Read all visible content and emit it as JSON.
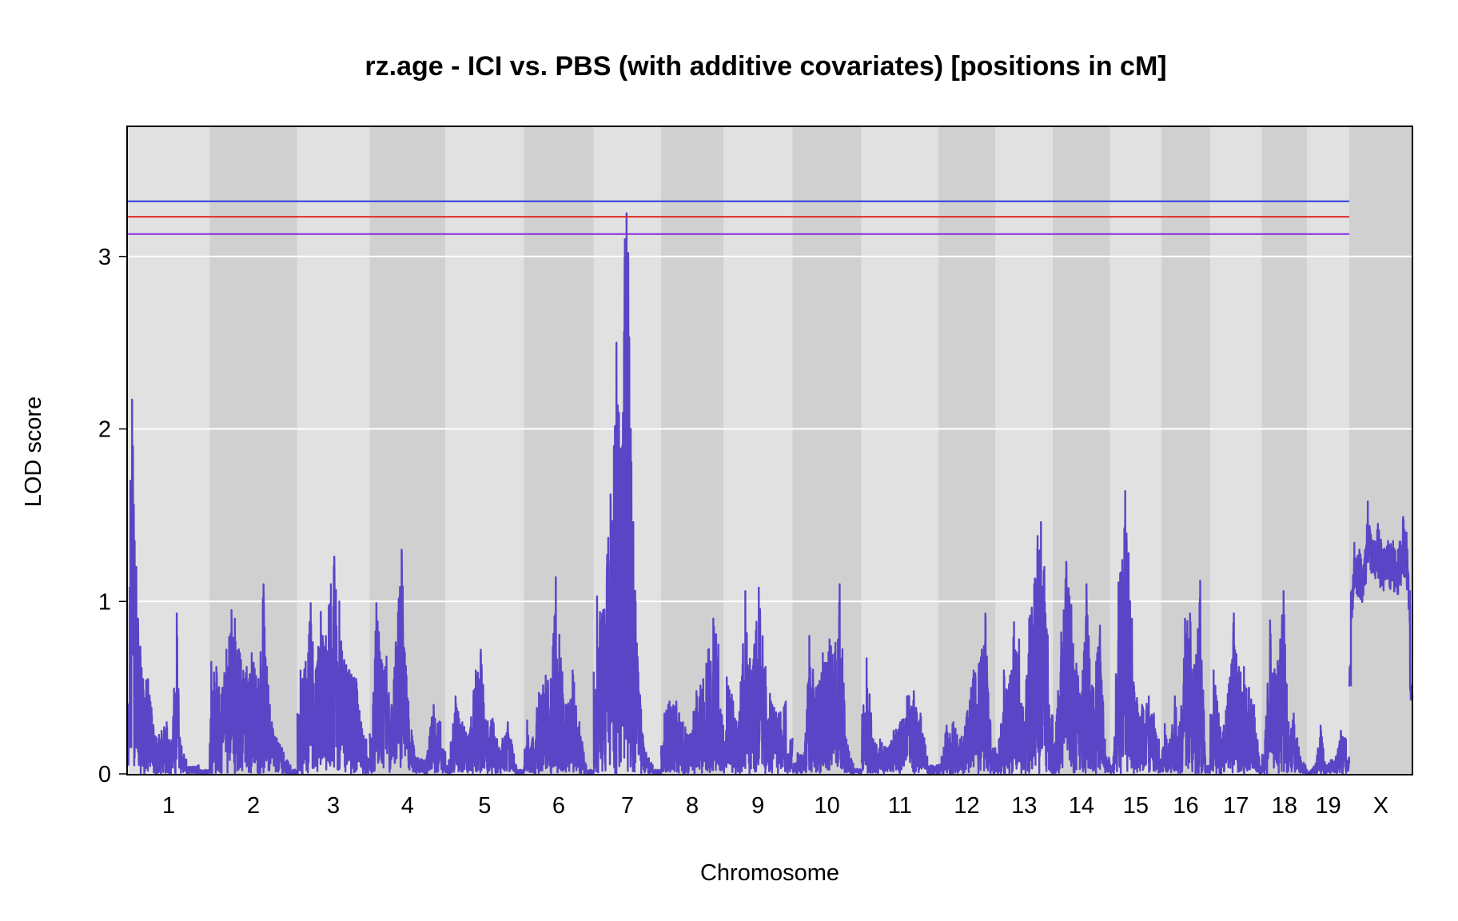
{
  "chart_data": {
    "type": "line",
    "title": "rz.age - ICI vs. PBS (with additive covariates) [positions in cM]",
    "xlabel": "Chromosome",
    "ylabel": "LOD score",
    "ylim": [
      0,
      3.75
    ],
    "y_ticks": [
      "0",
      "1",
      "2",
      "3"
    ],
    "grid": true,
    "colors": {
      "series": "#5a45c6",
      "band_light": "#e1e1e1",
      "band_dark": "#d0d0d0",
      "threshold_high": "#2a3be0",
      "threshold_mid": "#e02a2a",
      "threshold_low": "#8a2ae0"
    },
    "thresholds": [
      {
        "value": 3.32,
        "color": "#2a3be0"
      },
      {
        "value": 3.23,
        "color": "#e02a2a"
      },
      {
        "value": 3.13,
        "color": "#8a2ae0"
      }
    ],
    "chromosomes": [
      {
        "name": "1",
        "length": 97,
        "peaks": [
          [
            1,
            0.4
          ],
          [
            3,
            1.7
          ],
          [
            5,
            2.17
          ],
          [
            6,
            1.9
          ],
          [
            8,
            1.35
          ],
          [
            10,
            1.2
          ],
          [
            12,
            0.9
          ],
          [
            18,
            0.55
          ],
          [
            24,
            0.55
          ],
          [
            32,
            0.22
          ],
          [
            40,
            0.25
          ],
          [
            46,
            0.3
          ],
          [
            52,
            0.15
          ],
          [
            58,
            0.93
          ],
          [
            62,
            0.2
          ],
          [
            72,
            0.04
          ],
          [
            84,
            0.05
          ]
        ]
      },
      {
        "name": "2",
        "length": 104,
        "peaks": [
          [
            2,
            0.65
          ],
          [
            8,
            0.62
          ],
          [
            14,
            0.46
          ],
          [
            20,
            0.72
          ],
          [
            26,
            0.95
          ],
          [
            30,
            0.9
          ],
          [
            36,
            0.7
          ],
          [
            44,
            0.62
          ],
          [
            50,
            0.7
          ],
          [
            58,
            0.55
          ],
          [
            64,
            1.1
          ],
          [
            68,
            0.62
          ],
          [
            74,
            0.3
          ],
          [
            86,
            0.15
          ],
          [
            96,
            0.05
          ]
        ]
      },
      {
        "name": "3",
        "length": 86,
        "peaks": [
          [
            4,
            0.6
          ],
          [
            10,
            0.65
          ],
          [
            16,
            0.99
          ],
          [
            22,
            0.6
          ],
          [
            28,
            0.94
          ],
          [
            34,
            0.8
          ],
          [
            40,
            1.1
          ],
          [
            44,
            1.26
          ],
          [
            50,
            1.0
          ],
          [
            56,
            0.65
          ],
          [
            62,
            0.6
          ],
          [
            70,
            0.55
          ],
          [
            76,
            0.3
          ],
          [
            82,
            0.2
          ]
        ]
      },
      {
        "name": "4",
        "length": 90,
        "peaks": [
          [
            4,
            0.4
          ],
          [
            8,
            0.99
          ],
          [
            14,
            0.66
          ],
          [
            20,
            0.68
          ],
          [
            26,
            0.4
          ],
          [
            38,
            1.3
          ],
          [
            46,
            0.42
          ],
          [
            54,
            0.1
          ],
          [
            66,
            0.08
          ],
          [
            76,
            0.4
          ],
          [
            84,
            0.3
          ]
        ]
      },
      {
        "name": "5",
        "length": 93,
        "peaks": [
          [
            4,
            0.08
          ],
          [
            12,
            0.45
          ],
          [
            20,
            0.3
          ],
          [
            28,
            0.23
          ],
          [
            36,
            0.6
          ],
          [
            42,
            0.72
          ],
          [
            48,
            0.3
          ],
          [
            56,
            0.32
          ],
          [
            64,
            0.15
          ],
          [
            74,
            0.3
          ],
          [
            84,
            0.05
          ]
        ]
      },
      {
        "name": "6",
        "length": 83,
        "peaks": [
          [
            4,
            0.31
          ],
          [
            10,
            0.2
          ],
          [
            18,
            0.47
          ],
          [
            26,
            0.57
          ],
          [
            32,
            0.55
          ],
          [
            38,
            1.14
          ],
          [
            44,
            0.67
          ],
          [
            50,
            0.4
          ],
          [
            58,
            0.6
          ],
          [
            66,
            0.3
          ],
          [
            74,
            0.05
          ]
        ]
      },
      {
        "name": "7",
        "length": 80,
        "peaks": [
          [
            4,
            1.03
          ],
          [
            10,
            0.93
          ],
          [
            16,
            1.27
          ],
          [
            20,
            1.62
          ],
          [
            24,
            1.9
          ],
          [
            27,
            2.5
          ],
          [
            30,
            2.09
          ],
          [
            34,
            1.9
          ],
          [
            37,
            3.1
          ],
          [
            39,
            3.25
          ],
          [
            41,
            3.02
          ],
          [
            44,
            2.0
          ],
          [
            47,
            1.46
          ],
          [
            52,
            0.68
          ],
          [
            60,
            0.15
          ],
          [
            70,
            0.05
          ]
        ]
      },
      {
        "name": "8",
        "length": 74,
        "peaks": [
          [
            4,
            0.35
          ],
          [
            10,
            0.42
          ],
          [
            18,
            0.42
          ],
          [
            26,
            0.3
          ],
          [
            34,
            0.22
          ],
          [
            42,
            0.48
          ],
          [
            50,
            0.55
          ],
          [
            56,
            0.72
          ],
          [
            62,
            0.9
          ],
          [
            68,
            0.75
          ]
        ]
      },
      {
        "name": "9",
        "length": 82,
        "peaks": [
          [
            4,
            0.56
          ],
          [
            10,
            0.46
          ],
          [
            18,
            0.3
          ],
          [
            26,
            1.06
          ],
          [
            34,
            0.6
          ],
          [
            42,
            1.08
          ],
          [
            50,
            0.62
          ],
          [
            58,
            0.4
          ],
          [
            66,
            0.35
          ],
          [
            74,
            0.42
          ]
        ]
      },
      {
        "name": "10",
        "length": 82,
        "peaks": [
          [
            6,
            0.12
          ],
          [
            14,
            0.12
          ],
          [
            20,
            0.8
          ],
          [
            28,
            0.5
          ],
          [
            36,
            0.7
          ],
          [
            44,
            0.78
          ],
          [
            50,
            0.7
          ],
          [
            56,
            1.1
          ],
          [
            64,
            0.2
          ],
          [
            72,
            0.06
          ]
        ]
      },
      {
        "name": "11",
        "length": 91,
        "peaks": [
          [
            6,
            0.67
          ],
          [
            14,
            0.2
          ],
          [
            22,
            0.2
          ],
          [
            30,
            0.15
          ],
          [
            38,
            0.25
          ],
          [
            46,
            0.3
          ],
          [
            54,
            0.45
          ],
          [
            62,
            0.48
          ],
          [
            70,
            0.35
          ],
          [
            78,
            0.1
          ]
        ]
      },
      {
        "name": "12",
        "length": 68,
        "peaks": [
          [
            4,
            0.1
          ],
          [
            10,
            0.28
          ],
          [
            18,
            0.3
          ],
          [
            26,
            0.2
          ],
          [
            34,
            0.35
          ],
          [
            42,
            0.6
          ],
          [
            50,
            0.65
          ],
          [
            56,
            0.93
          ],
          [
            62,
            0.3
          ]
        ]
      },
      {
        "name": "13",
        "length": 68,
        "peaks": [
          [
            4,
            0.2
          ],
          [
            10,
            0.6
          ],
          [
            16,
            0.52
          ],
          [
            22,
            0.88
          ],
          [
            28,
            0.78
          ],
          [
            34,
            0.3
          ],
          [
            40,
            0.9
          ],
          [
            46,
            1.1
          ],
          [
            50,
            1.38
          ],
          [
            54,
            1.46
          ],
          [
            58,
            1.2
          ],
          [
            62,
            0.8
          ]
        ]
      },
      {
        "name": "14",
        "length": 68,
        "peaks": [
          [
            4,
            0.3
          ],
          [
            10,
            0.82
          ],
          [
            16,
            1.23
          ],
          [
            22,
            0.98
          ],
          [
            28,
            0.64
          ],
          [
            34,
            0.45
          ],
          [
            40,
            1.1
          ],
          [
            48,
            0.5
          ],
          [
            56,
            0.86
          ],
          [
            62,
            0.2
          ]
        ]
      },
      {
        "name": "15",
        "length": 61,
        "peaks": [
          [
            4,
            0.1
          ],
          [
            10,
            1.11
          ],
          [
            18,
            1.64
          ],
          [
            22,
            1.28
          ],
          [
            26,
            0.9
          ],
          [
            32,
            0.44
          ],
          [
            38,
            0.4
          ],
          [
            46,
            0.45
          ],
          [
            52,
            0.35
          ],
          [
            58,
            0.2
          ]
        ]
      },
      {
        "name": "16",
        "length": 58,
        "peaks": [
          [
            4,
            0.29
          ],
          [
            10,
            0.2
          ],
          [
            16,
            0.45
          ],
          [
            22,
            0.3
          ],
          [
            28,
            0.9
          ],
          [
            34,
            0.93
          ],
          [
            40,
            0.6
          ],
          [
            46,
            1.12
          ],
          [
            52,
            0.1
          ]
        ]
      },
      {
        "name": "17",
        "length": 61,
        "peaks": [
          [
            4,
            0.6
          ],
          [
            10,
            0.35
          ],
          [
            16,
            0.28
          ],
          [
            22,
            0.52
          ],
          [
            28,
            0.93
          ],
          [
            34,
            0.62
          ],
          [
            40,
            0.62
          ],
          [
            46,
            0.5
          ],
          [
            52,
            0.4
          ],
          [
            58,
            0.1
          ]
        ]
      },
      {
        "name": "18",
        "length": 54,
        "peaks": [
          [
            4,
            0.2
          ],
          [
            10,
            0.89
          ],
          [
            16,
            0.58
          ],
          [
            22,
            0.78
          ],
          [
            26,
            1.06
          ],
          [
            32,
            0.3
          ],
          [
            38,
            0.35
          ],
          [
            46,
            0.1
          ],
          [
            52,
            0.05
          ]
        ]
      },
      {
        "name": "19",
        "length": 50,
        "peaks": [
          [
            4,
            0.02
          ],
          [
            10,
            0.06
          ],
          [
            16,
            0.28
          ],
          [
            22,
            0.05
          ],
          [
            28,
            0.08
          ],
          [
            34,
            0.1
          ],
          [
            40,
            0.25
          ],
          [
            46,
            0.2
          ]
        ]
      },
      {
        "name": "X",
        "length": 75,
        "peaks": [
          [
            2,
            1.05
          ],
          [
            6,
            1.34
          ],
          [
            12,
            1.3
          ],
          [
            18,
            1.25
          ],
          [
            22,
            1.58
          ],
          [
            28,
            1.35
          ],
          [
            34,
            1.45
          ],
          [
            40,
            1.3
          ],
          [
            46,
            1.35
          ],
          [
            52,
            1.35
          ],
          [
            58,
            1.3
          ],
          [
            64,
            1.49
          ],
          [
            68,
            1.4
          ],
          [
            72,
            1.06
          ]
        ]
      }
    ]
  }
}
